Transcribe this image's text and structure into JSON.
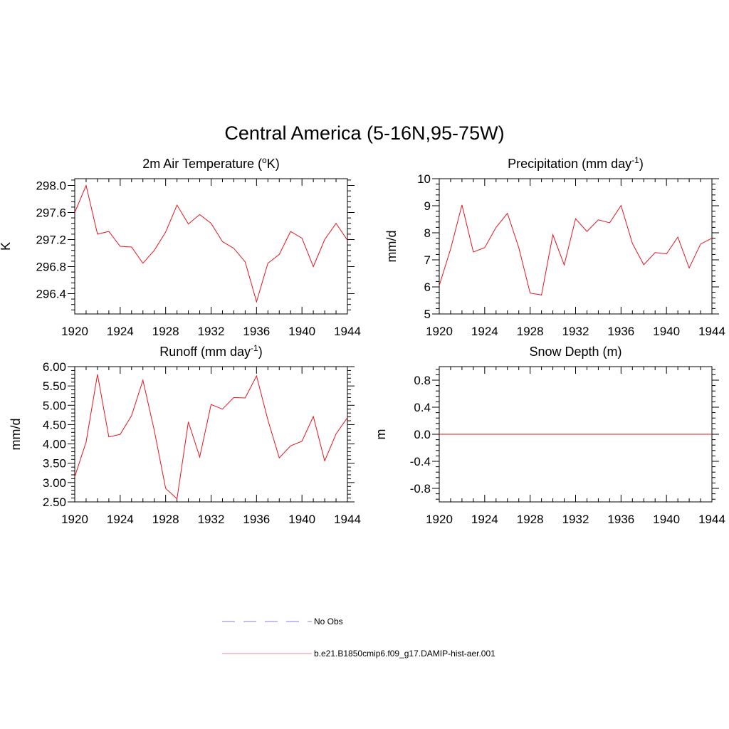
{
  "figure": {
    "title": "Central America (5-16N,95-75W)"
  },
  "legend": {
    "entries": [
      {
        "label": "No Obs",
        "color": "#9999ee",
        "dash": true
      },
      {
        "label": "b.e21.B1850cmip6.f09_g17.DAMIP-hist-aer.001",
        "color": "#f2a0a6",
        "dash": false
      }
    ]
  },
  "chart_data": [
    {
      "type": "line",
      "title": "2m Air Temperature (oK)",
      "title_parts": {
        "main": "2m Air Temperature (",
        "sup": "o",
        "tail": "K)"
      },
      "xlabel": "",
      "ylabel": "K",
      "xlim": [
        1920,
        1944
      ],
      "ylim": [
        296.1,
        298.1
      ],
      "xticks": [
        1920,
        1924,
        1928,
        1932,
        1936,
        1940,
        1944
      ],
      "yticks": [
        296.4,
        296.8,
        297.2,
        297.6,
        298.0
      ],
      "ytick_labels": [
        "296.4",
        "296.8",
        "297.2",
        "297.6",
        "298.0"
      ],
      "grid": false,
      "series": [
        {
          "name": "b.e21.B1850cmip6.f09_g17.DAMIP-hist-aer.001",
          "color": "#e8141e",
          "x": [
            1920,
            1921,
            1922,
            1923,
            1924,
            1925,
            1926,
            1927,
            1928,
            1929,
            1930,
            1931,
            1932,
            1933,
            1934,
            1935,
            1936,
            1937,
            1938,
            1939,
            1940,
            1941,
            1942,
            1943,
            1944
          ],
          "y": [
            297.6,
            298.0,
            297.28,
            297.32,
            297.1,
            297.09,
            296.85,
            297.04,
            297.31,
            297.71,
            297.43,
            297.57,
            297.44,
            297.17,
            297.07,
            296.87,
            296.28,
            296.85,
            296.98,
            297.32,
            297.22,
            296.8,
            297.2,
            297.44,
            297.19
          ]
        }
      ]
    },
    {
      "type": "line",
      "title": "Precipitation (mm day-1)",
      "title_parts": {
        "main": "Precipitation (mm day",
        "sup": "-1",
        "tail": ")"
      },
      "xlabel": "",
      "ylabel": "mm/d",
      "xlim": [
        1920,
        1944
      ],
      "ylim": [
        5,
        10
      ],
      "xticks": [
        1920,
        1924,
        1928,
        1932,
        1936,
        1940,
        1944
      ],
      "yticks": [
        5,
        6,
        7,
        8,
        9,
        10
      ],
      "ytick_labels": [
        "5",
        "6",
        "7",
        "8",
        "9",
        "10"
      ],
      "grid": false,
      "series": [
        {
          "name": "b.e21.B1850cmip6.f09_g17.DAMIP-hist-aer.001",
          "color": "#e8141e",
          "x": [
            1920,
            1921,
            1922,
            1923,
            1924,
            1925,
            1926,
            1927,
            1928,
            1929,
            1930,
            1931,
            1932,
            1933,
            1934,
            1935,
            1936,
            1937,
            1938,
            1939,
            1940,
            1941,
            1942,
            1943,
            1944
          ],
          "y": [
            6.05,
            7.4,
            9.03,
            7.29,
            7.45,
            8.2,
            8.72,
            7.45,
            5.77,
            5.7,
            7.93,
            6.81,
            8.52,
            8.05,
            8.48,
            8.37,
            9.01,
            7.61,
            6.82,
            7.27,
            7.22,
            7.84,
            6.7,
            7.58,
            7.8
          ]
        }
      ]
    },
    {
      "type": "line",
      "title": "Runoff (mm day-1)",
      "title_parts": {
        "main": "Runoff (mm day",
        "sup": "-1",
        "tail": ")"
      },
      "xlabel": "",
      "ylabel": "mm/d",
      "xlim": [
        1920,
        1944
      ],
      "ylim": [
        2.5,
        6.0
      ],
      "xticks": [
        1920,
        1924,
        1928,
        1932,
        1936,
        1940,
        1944
      ],
      "yticks": [
        2.5,
        3.0,
        3.5,
        4.0,
        4.5,
        5.0,
        5.5,
        6.0
      ],
      "ytick_labels": [
        "2.50",
        "3.00",
        "3.50",
        "4.00",
        "4.50",
        "5.00",
        "5.50",
        "6.00"
      ],
      "grid": false,
      "series": [
        {
          "name": "b.e21.B1850cmip6.f09_g17.DAMIP-hist-aer.001",
          "color": "#e8141e",
          "x": [
            1920,
            1921,
            1922,
            1923,
            1924,
            1925,
            1926,
            1927,
            1928,
            1929,
            1930,
            1931,
            1932,
            1933,
            1934,
            1935,
            1936,
            1937,
            1938,
            1939,
            1940,
            1941,
            1942,
            1943,
            1944
          ],
          "y": [
            3.15,
            4.05,
            5.8,
            4.18,
            4.25,
            4.73,
            5.65,
            4.35,
            2.85,
            2.58,
            4.57,
            3.66,
            5.02,
            4.9,
            5.2,
            5.19,
            5.76,
            4.62,
            3.64,
            3.95,
            4.07,
            4.71,
            3.56,
            4.26,
            4.68
          ]
        }
      ]
    },
    {
      "type": "line",
      "title": "Snow Depth (m)",
      "title_parts": {
        "main": "Snow Depth (m)",
        "sup": "",
        "tail": ""
      },
      "xlabel": "",
      "ylabel": "m",
      "xlim": [
        1920,
        1944
      ],
      "ylim": [
        -1.0,
        1.0
      ],
      "xticks": [
        1920,
        1924,
        1928,
        1932,
        1936,
        1940,
        1944
      ],
      "yticks": [
        -0.8,
        -0.4,
        0.0,
        0.4,
        0.8
      ],
      "ytick_labels": [
        "-0.8",
        "-0.4",
        "0.0",
        "0.4",
        "0.8"
      ],
      "grid": false,
      "series": [
        {
          "name": "b.e21.B1850cmip6.f09_g17.DAMIP-hist-aer.001",
          "color": "#e8141e",
          "x": [
            1920,
            1921,
            1922,
            1923,
            1924,
            1925,
            1926,
            1927,
            1928,
            1929,
            1930,
            1931,
            1932,
            1933,
            1934,
            1935,
            1936,
            1937,
            1938,
            1939,
            1940,
            1941,
            1942,
            1943,
            1944
          ],
          "y": [
            0,
            0,
            0,
            0,
            0,
            0,
            0,
            0,
            0,
            0,
            0,
            0,
            0,
            0,
            0,
            0,
            0,
            0,
            0,
            0,
            0,
            0,
            0,
            0,
            0
          ]
        }
      ]
    }
  ]
}
